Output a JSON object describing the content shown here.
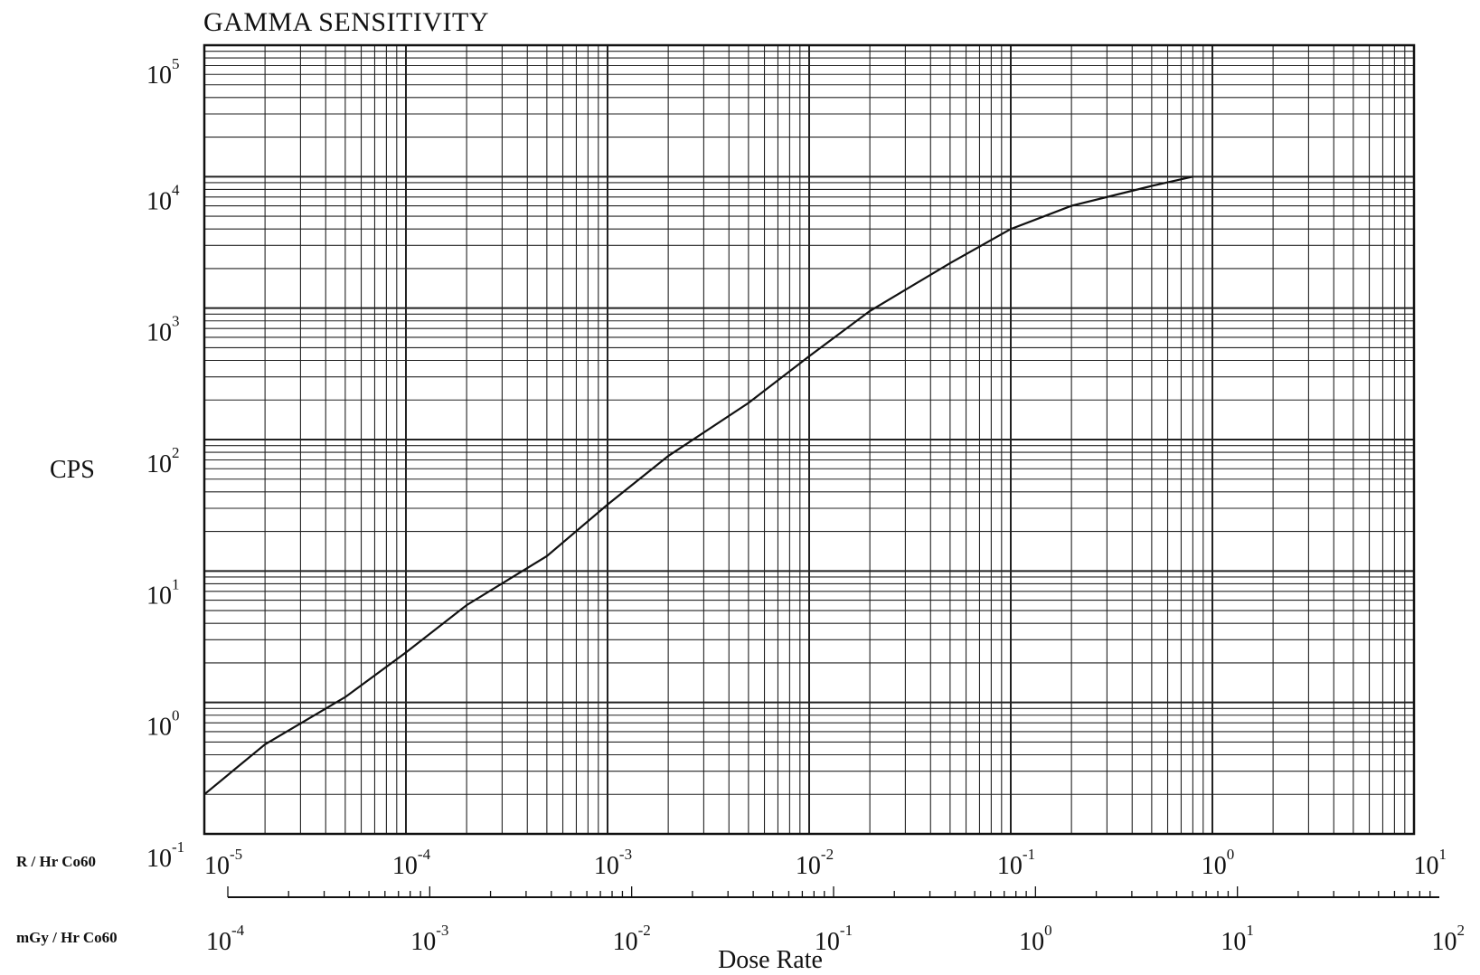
{
  "chart_data": {
    "type": "line",
    "title": "GAMMA SENSITIVITY",
    "ylabel": "CPS",
    "xlabel": "Dose Rate",
    "y_scale": "log",
    "x_scale": "log",
    "ylim": [
      0.1,
      100000
    ],
    "xlim": [
      1e-05,
      10
    ],
    "grid": true,
    "y_ticks": [
      {
        "base": "10",
        "exp": "5"
      },
      {
        "base": "10",
        "exp": "4"
      },
      {
        "base": "10",
        "exp": "3"
      },
      {
        "base": "10",
        "exp": "2"
      },
      {
        "base": "10",
        "exp": "1"
      },
      {
        "base": "10",
        "exp": "0"
      },
      {
        "base": "10",
        "exp": "-1"
      }
    ],
    "x_axes": [
      {
        "label": "R / Hr Co60",
        "ticks": [
          {
            "base": "10",
            "exp": "-5"
          },
          {
            "base": "10",
            "exp": "-4"
          },
          {
            "base": "10",
            "exp": "-3"
          },
          {
            "base": "10",
            "exp": "-2"
          },
          {
            "base": "10",
            "exp": "-1"
          },
          {
            "base": "10",
            "exp": "0"
          },
          {
            "base": "10",
            "exp": "1"
          }
        ]
      },
      {
        "label": "mGy / Hr Co60",
        "ticks": [
          {
            "base": "10",
            "exp": "-4"
          },
          {
            "base": "10",
            "exp": "-3"
          },
          {
            "base": "10",
            "exp": "-2"
          },
          {
            "base": "10",
            "exp": "-1"
          },
          {
            "base": "10",
            "exp": "0"
          },
          {
            "base": "10",
            "exp": "1"
          },
          {
            "base": "10",
            "exp": "2"
          }
        ]
      }
    ],
    "series": [
      {
        "x": [
          1e-05,
          2e-05,
          5e-05,
          0.0001,
          0.0002,
          0.0005,
          0.001,
          0.002,
          0.005,
          0.01,
          0.02,
          0.05,
          0.1,
          0.2,
          0.5,
          0.8
        ],
        "y": [
          0.2,
          0.48,
          1.1,
          2.4,
          5.5,
          13,
          32,
          75,
          190,
          430,
          950,
          2200,
          4000,
          6000,
          8500,
          10000
        ]
      }
    ],
    "line_color": "#111111"
  }
}
